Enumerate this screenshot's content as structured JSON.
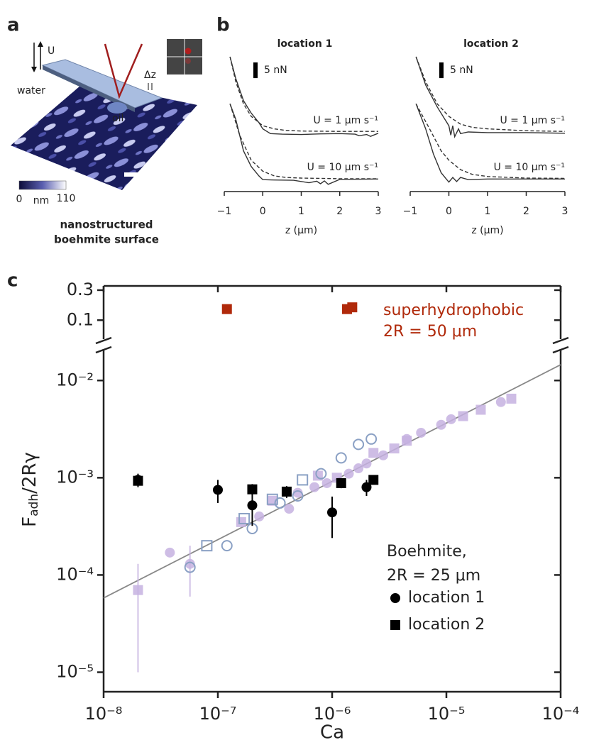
{
  "panel_labels": [
    "a",
    "b",
    "c"
  ],
  "illustration": {
    "arrow_label": "U",
    "dz_label": "Δz",
    "water_label": "water",
    "oil_label": "oil",
    "colorbar": {
      "min": "0",
      "unit": "nm",
      "max": "110"
    },
    "caption": [
      "nanostructured",
      "boehmite surface"
    ]
  },
  "chart_data": [
    {
      "type": "line",
      "title": "location 1",
      "xlabel": "z (μm)",
      "xlim": [
        -1,
        3
      ],
      "xticks": [
        {
          "value": -1,
          "label": "−1"
        },
        0,
        1,
        2,
        3
      ],
      "ylim": [
        0,
        43
      ],
      "scale_bar": {
        "value": 5,
        "label": "5 nN"
      },
      "annotations": [
        "U = 1 μm s⁻¹",
        "U = 10 μm s⁻¹"
      ],
      "series": [
        {
          "color": "#333333",
          "style": "solid",
          "x": [
            -0.85,
            -0.7,
            -0.5,
            -0.3,
            -0.1,
            0,
            0.2,
            0.5,
            1,
            1.5,
            2,
            2.4,
            2.5,
            2.7,
            2.8,
            3
          ],
          "values": [
            43,
            36,
            29,
            25,
            22,
            20,
            18.5,
            18.3,
            18.2,
            18.4,
            18.5,
            18.3,
            17.8,
            18.2,
            17.6,
            18.6
          ]
        },
        {
          "color": "#333333",
          "style": "dashed",
          "x": [
            -0.85,
            -0.7,
            -0.5,
            -0.3,
            0,
            0.3,
            0.6,
            1,
            2,
            3
          ],
          "values": [
            43,
            35,
            28,
            24,
            21,
            20,
            19.5,
            19.3,
            19.2,
            19.2
          ]
        },
        {
          "color": "#333333",
          "style": "solid",
          "x": [
            -0.85,
            -0.7,
            -0.5,
            -0.3,
            -0.1,
            0,
            0.3,
            0.8,
            1.2,
            1.4,
            1.5,
            1.6,
            1.7,
            2,
            3
          ],
          "values": [
            28,
            23,
            13,
            8,
            5,
            3.8,
            3.7,
            3.6,
            2.8,
            3.3,
            2.5,
            3.4,
            2.3,
            3.9,
            4
          ]
        },
        {
          "color": "#333333",
          "style": "dashed",
          "x": [
            -0.85,
            -0.6,
            -0.3,
            0,
            0.3,
            0.6,
            1,
            2,
            3
          ],
          "values": [
            28,
            18,
            10,
            6.5,
            5,
            4.5,
            4.3,
            4.1,
            4.1
          ]
        }
      ]
    },
    {
      "type": "line",
      "title": "location 2",
      "xlabel": "z (μm)",
      "xlim": [
        -1,
        3
      ],
      "xticks": [
        {
          "value": -1,
          "label": "−1"
        },
        0,
        1,
        2,
        3
      ],
      "ylim": [
        0,
        43
      ],
      "scale_bar": {
        "value": 5,
        "label": "5 nN"
      },
      "annotations": [
        "U = 1 μm s⁻¹",
        "U = 10 μm s⁻¹"
      ],
      "series": [
        {
          "color": "#333333",
          "style": "solid",
          "x": [
            -0.85,
            -0.6,
            -0.3,
            -0.1,
            0,
            0.05,
            0.1,
            0.15,
            0.25,
            0.3,
            0.5,
            1,
            2,
            3
          ],
          "values": [
            43,
            34,
            27,
            23,
            21,
            18,
            21,
            17.5,
            20,
            18.5,
            19,
            18.8,
            18.8,
            18.6
          ]
        },
        {
          "color": "#333333",
          "style": "dashed",
          "x": [
            -0.85,
            -0.6,
            -0.3,
            0,
            0.3,
            0.6,
            1,
            2,
            3
          ],
          "values": [
            43,
            35,
            28,
            24,
            21.5,
            20.5,
            20,
            19.4,
            19.2
          ]
        },
        {
          "color": "#333333",
          "style": "solid",
          "x": [
            -0.85,
            -0.6,
            -0.4,
            -0.2,
            0,
            0.1,
            0.2,
            0.3,
            0.5,
            1,
            3
          ],
          "values": [
            28,
            20,
            12,
            6,
            3,
            4.5,
            3.2,
            4.5,
            3.8,
            4,
            4
          ]
        },
        {
          "color": "#333333",
          "style": "dashed",
          "x": [
            -0.85,
            -0.5,
            -0.2,
            0,
            0.3,
            0.6,
            1,
            2,
            3
          ],
          "values": [
            28,
            20,
            13,
            10,
            7,
            5.5,
            4.8,
            4.3,
            4.2
          ]
        }
      ]
    },
    {
      "type": "scatter",
      "xlabel": "Ca",
      "ylabel": [
        "F",
        "adh",
        "/2Rγ"
      ],
      "log_x": true,
      "log_y": true,
      "xlim": [
        1e-08,
        0.0001
      ],
      "xticks": [
        {
          "value": 1e-08,
          "label": "10⁻⁸"
        },
        {
          "value": 1e-07,
          "label": "10⁻⁷"
        },
        {
          "value": 1e-06,
          "label": "10⁻⁶"
        },
        {
          "value": 1e-05,
          "label": "10⁻⁵"
        },
        {
          "value": 0.0001,
          "label": "10⁻⁴"
        }
      ],
      "ylim": [
        6.3e-06,
        0.02
      ],
      "yticks": [
        {
          "value": 1e-05,
          "label": "10⁻⁵"
        },
        {
          "value": 0.0001,
          "label": "10⁻⁴"
        },
        {
          "value": 0.001,
          "label": "10⁻³"
        },
        {
          "value": 0.01,
          "label": "10⁻²"
        }
      ],
      "y2lim": [
        0.05,
        0.35
      ],
      "y2ticks": [
        0.1,
        0.3
      ],
      "legend": "lower right",
      "legend_title": [
        "Boehmite,",
        "2R  = 25 μm"
      ],
      "annotations": [
        "superhydrophobic",
        "2R  = 50 μm"
      ],
      "annotation_color": "#b0290a",
      "series": [
        {
          "color": "#888888",
          "marker": "line",
          "x": [
            1e-08,
            0.0001
          ],
          "values": [
            5.8e-05,
            0.0145
          ]
        },
        {
          "color": "#c6b2e0",
          "marker": "circle",
          "x": [
            3.8e-08,
            5.7e-08,
            2.3e-07,
            4.2e-07,
            5e-07,
            7e-07,
            9e-07,
            1.4e-06,
            1.7e-06,
            2e-06,
            2.8e-06,
            4.5e-06,
            6e-06,
            9e-06,
            1.1e-05,
            3e-05
          ],
          "values": [
            0.00017,
            0.00013,
            0.0004,
            0.00048,
            0.0007,
            0.0008,
            0.00088,
            0.0011,
            0.00125,
            0.0014,
            0.0017,
            0.0025,
            0.0029,
            0.0035,
            0.004,
            0.006
          ],
          "errors": [
            null,
            7e-05,
            null,
            null,
            null,
            null,
            null,
            null,
            null,
            null,
            null,
            null,
            null,
            null,
            null,
            null
          ]
        },
        {
          "color": "#c6b2e0",
          "marker": "square",
          "x": [
            2e-08,
            1.6e-07,
            3e-07,
            7.5e-07,
            1.1e-06,
            2.3e-06,
            3.5e-06,
            4.5e-06,
            1.4e-05,
            2e-05,
            3.7e-05
          ],
          "values": [
            7e-05,
            0.00035,
            0.00058,
            0.00105,
            0.001,
            0.0018,
            0.002,
            0.0024,
            0.0043,
            0.005,
            0.0065
          ],
          "errors": [
            6e-05,
            null,
            null,
            null,
            null,
            null,
            null,
            null,
            null,
            null,
            null
          ]
        },
        {
          "color": "#8aa0c4",
          "marker": "circle",
          "open": true,
          "x": [
            5.7e-08,
            1.2e-07,
            2e-07,
            3.5e-07,
            5e-07,
            8e-07,
            1.2e-06,
            1.7e-06,
            2.2e-06
          ],
          "values": [
            0.00012,
            0.0002,
            0.0003,
            0.00055,
            0.00065,
            0.0011,
            0.0016,
            0.0022,
            0.0025
          ]
        },
        {
          "color": "#8aa0c4",
          "marker": "square",
          "open": true,
          "x": [
            8e-08,
            1.7e-07,
            3e-07,
            5.5e-07
          ],
          "values": [
            0.0002,
            0.00038,
            0.0006,
            0.00095
          ]
        },
        {
          "name": "location 1",
          "color": "#000000",
          "marker": "circle",
          "x": [
            2e-08,
            1e-07,
            2e-07,
            1e-06,
            2e-06
          ],
          "values": [
            0.00095,
            0.00075,
            0.00052,
            0.00044,
            0.0008
          ],
          "errors": [
            0.00015,
            0.0002,
            0.0002,
            0.0002,
            0.00015
          ]
        },
        {
          "name": "location 2",
          "color": "#000000",
          "marker": "square",
          "x": [
            2e-08,
            2e-07,
            4e-07,
            1.2e-06,
            2.3e-06
          ],
          "values": [
            0.00093,
            0.00076,
            0.00072,
            0.00088,
            0.00095
          ],
          "errors": [
            0.0001,
            0.0001,
            0.0001,
            0.0001,
            0.0001
          ]
        },
        {
          "color": "#b0290a",
          "marker": "square",
          "axis": "y2",
          "x": [
            1.2e-07,
            1.35e-06,
            1.5e-06
          ],
          "values": [
            0.15,
            0.15,
            0.16
          ]
        }
      ]
    }
  ]
}
